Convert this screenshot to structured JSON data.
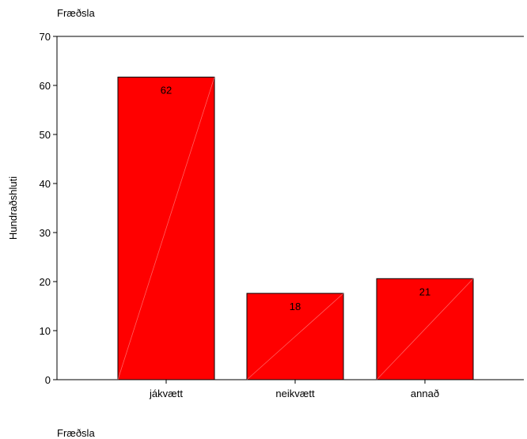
{
  "chart_data": {
    "type": "bar",
    "title": "Fræðsla",
    "xlabel": "Fræðsla",
    "ylabel": "Hundraðshluti",
    "categories": [
      "jákvætt",
      "neikvætt",
      "annað"
    ],
    "values": [
      61.7,
      17.6,
      20.6
    ],
    "data_labels": [
      "62",
      "18",
      "21"
    ],
    "ylim": [
      0,
      70
    ],
    "yticks": [
      0,
      10,
      20,
      30,
      40,
      50,
      60,
      70
    ],
    "grid": false,
    "legend": "none",
    "bar_color": "#ff0000",
    "bar_stroke": "#000000"
  }
}
